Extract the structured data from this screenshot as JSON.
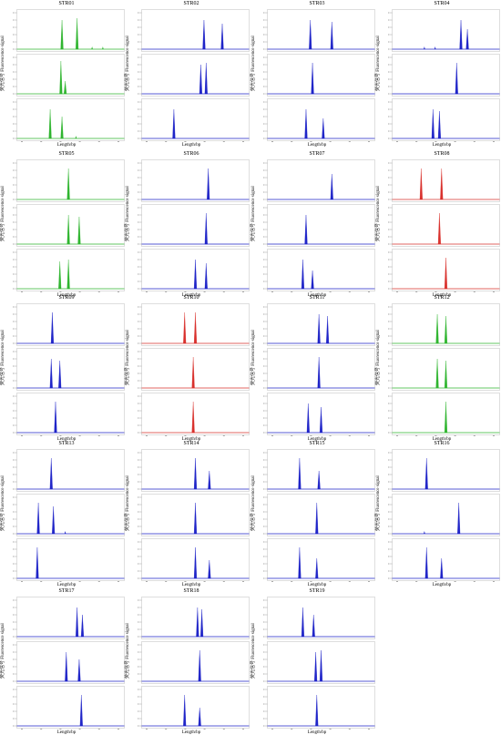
{
  "labels": {
    "ylabel_cn": "荧光信号",
    "ylabel_en": "Fluorescence signal",
    "xlabel": "Length/bp"
  },
  "colors": {
    "blue": "#1f24c8",
    "green": "#2fb52f",
    "red": "#d9302c"
  },
  "chart_data": [
    {
      "type": "line",
      "title": "STR01",
      "xlabel": "Length/bp",
      "color": "green",
      "rows": [
        [
          0.42,
          0.56
        ],
        [
          0.41,
          0.45
        ],
        [
          0.31,
          0.42
        ]
      ],
      "heights": [
        [
          0.8,
          0.85
        ],
        [
          0.9,
          0.35
        ],
        [
          0.8,
          0.6
        ]
      ],
      "minor": [
        [
          0.7,
          0.8
        ],
        [],
        [
          0.55
        ]
      ]
    },
    {
      "type": "line",
      "title": "STR02",
      "xlabel": "Length/bp",
      "color": "blue",
      "rows": [
        [
          0.58,
          0.75
        ],
        [
          0.55,
          0.6
        ],
        [
          0.3
        ]
      ],
      "heights": [
        [
          0.8,
          0.7
        ],
        [
          0.8,
          0.85
        ],
        [
          0.8
        ]
      ],
      "minor": [
        [],
        [],
        []
      ]
    },
    {
      "type": "line",
      "title": "STR03",
      "xlabel": "Length/bp",
      "color": "blue",
      "rows": [
        [
          0.4,
          0.6
        ],
        [
          0.42
        ],
        [
          0.36,
          0.52
        ]
      ],
      "heights": [
        [
          0.8,
          0.75
        ],
        [
          0.85
        ],
        [
          0.8,
          0.55
        ]
      ],
      "minor": [
        [],
        [],
        []
      ]
    },
    {
      "type": "line",
      "title": "STR04",
      "xlabel": "Length/bp",
      "color": "blue",
      "rows": [
        [
          0.64,
          0.7
        ],
        [
          0.6
        ],
        [
          0.38,
          0.44
        ]
      ],
      "heights": [
        [
          0.8,
          0.55
        ],
        [
          0.85
        ],
        [
          0.8,
          0.75
        ]
      ],
      "minor": [
        [
          0.3,
          0.4
        ],
        [],
        []
      ]
    },
    {
      "type": "line",
      "title": "STR05",
      "xlabel": "Length/bp",
      "color": "green",
      "rows": [
        [
          0.48
        ],
        [
          0.48,
          0.58
        ],
        [
          0.4,
          0.48
        ]
      ],
      "heights": [
        [
          0.85
        ],
        [
          0.8,
          0.75
        ],
        [
          0.75,
          0.8
        ]
      ],
      "minor": [
        [],
        [],
        []
      ]
    },
    {
      "type": "line",
      "title": "STR06",
      "xlabel": "Length/bp",
      "color": "blue",
      "rows": [
        [
          0.62
        ],
        [
          0.6
        ],
        [
          0.5,
          0.6
        ]
      ],
      "heights": [
        [
          0.85
        ],
        [
          0.85
        ],
        [
          0.8,
          0.7
        ]
      ],
      "minor": [
        [],
        [],
        []
      ]
    },
    {
      "type": "line",
      "title": "STR07",
      "xlabel": "Length/bp",
      "color": "blue",
      "rows": [
        [
          0.6
        ],
        [
          0.36
        ],
        [
          0.33,
          0.42
        ]
      ],
      "heights": [
        [
          0.7
        ],
        [
          0.8
        ],
        [
          0.8,
          0.5
        ]
      ],
      "minor": [
        [],
        [],
        []
      ]
    },
    {
      "type": "line",
      "title": "STR08",
      "xlabel": "Length/bp",
      "color": "red",
      "rows": [
        [
          0.27,
          0.46
        ],
        [
          0.44
        ],
        [
          0.5
        ]
      ],
      "heights": [
        [
          0.85,
          0.85
        ],
        [
          0.85
        ],
        [
          0.85
        ]
      ],
      "minor": [
        [],
        [],
        []
      ]
    },
    {
      "type": "line",
      "title": "STR09",
      "xlabel": "Length/bp",
      "color": "blue",
      "rows": [
        [
          0.33
        ],
        [
          0.32,
          0.4
        ],
        [
          0.36
        ]
      ],
      "heights": [
        [
          0.85
        ],
        [
          0.8,
          0.75
        ],
        [
          0.85
        ]
      ],
      "minor": [
        [],
        [],
        []
      ]
    },
    {
      "type": "line",
      "title": "STR10",
      "xlabel": "Length/bp",
      "color": "red",
      "rows": [
        [
          0.4,
          0.5
        ],
        [
          0.48
        ],
        [
          0.48
        ]
      ],
      "heights": [
        [
          0.85,
          0.85
        ],
        [
          0.85
        ],
        [
          0.85
        ]
      ],
      "minor": [
        [],
        [],
        []
      ]
    },
    {
      "type": "line",
      "title": "STR11",
      "xlabel": "Length/bp",
      "color": "blue",
      "rows": [
        [
          0.48,
          0.56
        ],
        [
          0.48
        ],
        [
          0.38,
          0.5
        ]
      ],
      "heights": [
        [
          0.8,
          0.75
        ],
        [
          0.85
        ],
        [
          0.8,
          0.7
        ]
      ],
      "minor": [
        [],
        [],
        []
      ]
    },
    {
      "type": "line",
      "title": "STR12",
      "xlabel": "Length/bp",
      "color": "green",
      "rows": [
        [
          0.42,
          0.5
        ],
        [
          0.42,
          0.5
        ],
        [
          0.5
        ]
      ],
      "heights": [
        [
          0.8,
          0.75
        ],
        [
          0.8,
          0.75
        ],
        [
          0.85
        ]
      ],
      "minor": [
        [],
        [],
        []
      ]
    },
    {
      "type": "line",
      "title": "STR13",
      "xlabel": "Length/bp",
      "color": "blue",
      "rows": [
        [
          0.32
        ],
        [
          0.2,
          0.34
        ],
        [
          0.19
        ]
      ],
      "heights": [
        [
          0.85
        ],
        [
          0.85,
          0.75
        ],
        [
          0.85
        ]
      ],
      "minor": [
        [],
        [
          0.45
        ],
        []
      ]
    },
    {
      "type": "line",
      "title": "STR14",
      "xlabel": "Length/bp",
      "color": "blue",
      "rows": [
        [
          0.5,
          0.63
        ],
        [
          0.5
        ],
        [
          0.5,
          0.63
        ]
      ],
      "heights": [
        [
          0.85,
          0.5
        ],
        [
          0.85
        ],
        [
          0.85,
          0.5
        ]
      ],
      "minor": [
        [],
        [],
        []
      ]
    },
    {
      "type": "line",
      "title": "STR15",
      "xlabel": "Length/bp",
      "color": "blue",
      "rows": [
        [
          0.3,
          0.48
        ],
        [
          0.46
        ],
        [
          0.3,
          0.46
        ]
      ],
      "heights": [
        [
          0.85,
          0.5
        ],
        [
          0.85
        ],
        [
          0.85,
          0.55
        ]
      ],
      "minor": [
        [],
        [],
        []
      ]
    },
    {
      "type": "line",
      "title": "STR16",
      "xlabel": "Length/bp",
      "color": "blue",
      "rows": [
        [
          0.32
        ],
        [
          0.62
        ],
        [
          0.32,
          0.46
        ]
      ],
      "heights": [
        [
          0.85
        ],
        [
          0.85
        ],
        [
          0.85,
          0.55
        ]
      ],
      "minor": [
        [],
        [
          0.3
        ],
        []
      ]
    },
    {
      "type": "line",
      "title": "STR17",
      "xlabel": "Length/bp",
      "color": "blue",
      "rows": [
        [
          0.56,
          0.61
        ],
        [
          0.46,
          0.58
        ],
        [
          0.6
        ]
      ],
      "heights": [
        [
          0.8,
          0.6
        ],
        [
          0.8,
          0.6
        ],
        [
          0.85
        ]
      ],
      "minor": [
        [],
        [],
        []
      ]
    },
    {
      "type": "line",
      "title": "STR18",
      "xlabel": "Length/bp",
      "color": "blue",
      "rows": [
        [
          0.52,
          0.56
        ],
        [
          0.54
        ],
        [
          0.4,
          0.54
        ]
      ],
      "heights": [
        [
          0.8,
          0.75
        ],
        [
          0.85
        ],
        [
          0.85,
          0.5
        ]
      ],
      "minor": [
        [],
        [],
        []
      ]
    },
    {
      "type": "line",
      "title": "STR19",
      "xlabel": "Length/bp",
      "color": "blue",
      "rows": [
        [
          0.33,
          0.43
        ],
        [
          0.45,
          0.5
        ],
        [
          0.46
        ]
      ],
      "heights": [
        [
          0.8,
          0.6
        ],
        [
          0.8,
          0.85
        ],
        [
          0.85
        ]
      ],
      "minor": [
        [],
        [],
        []
      ]
    }
  ]
}
